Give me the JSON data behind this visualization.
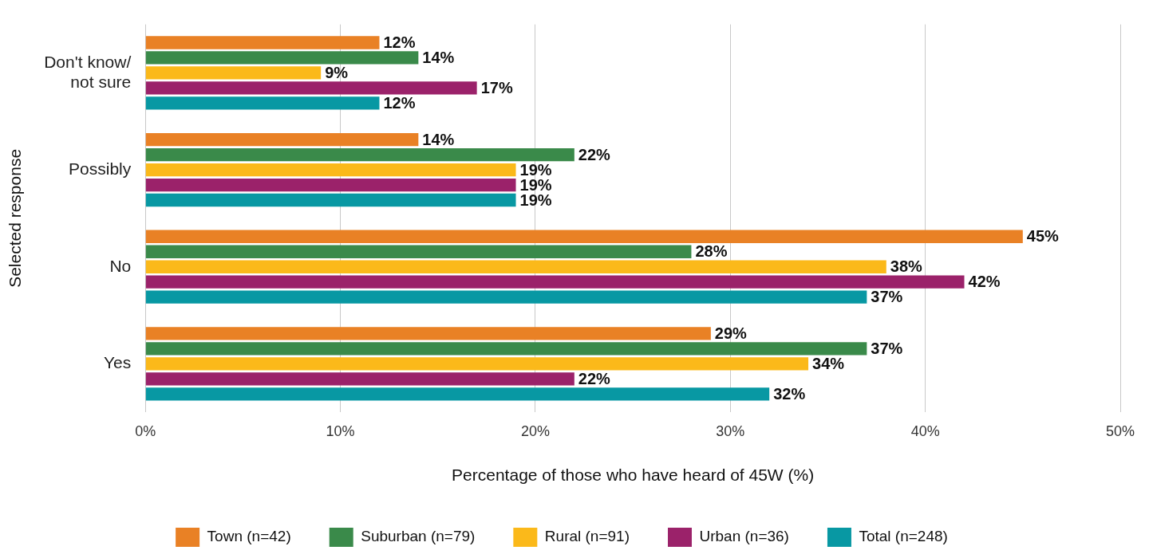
{
  "chart_data": {
    "type": "bar",
    "orientation": "horizontal",
    "xlabel": "Percentage of those who have heard of 45W (%)",
    "ylabel": "Selected response",
    "categories": [
      "Don't know/ not sure",
      "Possibly",
      "No",
      "Yes"
    ],
    "series": [
      {
        "name": "Town (n=42)",
        "color": "#e98125",
        "values": [
          12,
          14,
          45,
          29
        ],
        "value_labels": [
          "12%",
          "14%",
          "45%",
          "29%"
        ]
      },
      {
        "name": "Suburban (n=79)",
        "color": "#3a8a4a",
        "values": [
          14,
          22,
          28,
          37
        ],
        "value_labels": [
          "14%",
          "22%",
          "28%",
          "37%"
        ]
      },
      {
        "name": "Rural (n=91)",
        "color": "#fbb91a",
        "values": [
          9,
          19,
          38,
          34
        ],
        "value_labels": [
          "9%",
          "19%",
          "38%",
          "34%"
        ]
      },
      {
        "name": "Urban (n=36)",
        "color": "#9b226a",
        "values": [
          17,
          19,
          42,
          22
        ],
        "value_labels": [
          "17%",
          "19%",
          "42%",
          "22%"
        ]
      },
      {
        "name": "Total (n=248)",
        "color": "#0898a3",
        "values": [
          12,
          19,
          37,
          32
        ],
        "value_labels": [
          "12%",
          "19%",
          "37%",
          "32%"
        ]
      }
    ],
    "xlim": [
      0,
      50
    ],
    "xticks": [
      {
        "value": 0,
        "label": "0%"
      },
      {
        "value": 10,
        "label": "10%"
      },
      {
        "value": 20,
        "label": "20%"
      },
      {
        "value": 30,
        "label": "30%"
      },
      {
        "value": 40,
        "label": "40%"
      },
      {
        "value": 50,
        "label": "50%"
      }
    ],
    "grid": "x",
    "legend": "bottom"
  }
}
